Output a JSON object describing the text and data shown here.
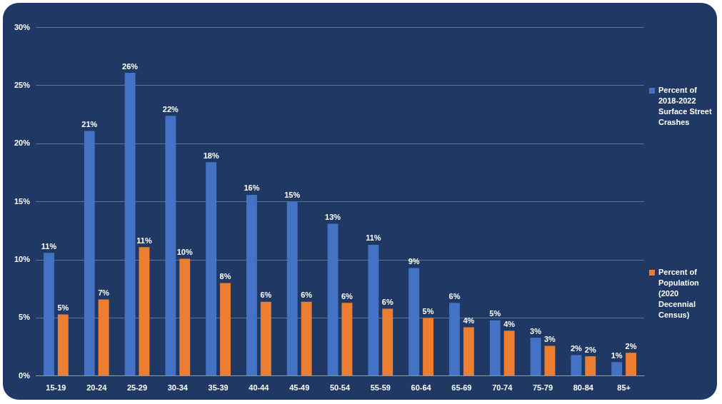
{
  "chart_data": {
    "type": "bar",
    "categories": [
      "15-19",
      "20-24",
      "25-29",
      "30-34",
      "35-39",
      "40-44",
      "45-49",
      "50-54",
      "55-59",
      "60-64",
      "65-69",
      "70-74",
      "75-79",
      "80-84",
      "85+"
    ],
    "series": [
      {
        "name": "Percent of 2018-2022 Surface Street Crashes",
        "color": "#4472c4",
        "values": [
          10.6,
          21.1,
          26.1,
          22.4,
          18.4,
          15.6,
          15.0,
          13.1,
          11.3,
          9.3,
          6.3,
          4.8,
          3.3,
          1.8,
          1.2
        ],
        "value_labels": [
          "11%",
          "21%",
          "26%",
          "22%",
          "18%",
          "16%",
          "15%",
          "13%",
          "11%",
          "9%",
          "6%",
          "5%",
          "3%",
          "2%",
          "1%"
        ]
      },
      {
        "name": "Percent of Population (2020 Decennial Census)",
        "color": "#ed7d31",
        "values": [
          5.3,
          6.6,
          11.1,
          10.1,
          8.0,
          6.4,
          6.4,
          6.3,
          5.8,
          5.0,
          4.2,
          3.9,
          2.6,
          1.7,
          2.0
        ],
        "value_labels": [
          "5%",
          "7%",
          "11%",
          "10%",
          "8%",
          "6%",
          "6%",
          "6%",
          "6%",
          "5%",
          "4%",
          "4%",
          "3%",
          "2%",
          "2%"
        ]
      }
    ],
    "ylim": [
      0,
      30
    ],
    "yticks": [
      {
        "value": 0,
        "label": "0%"
      },
      {
        "value": 5,
        "label": "5%"
      },
      {
        "value": 10,
        "label": "10%"
      },
      {
        "value": 15,
        "label": "15%"
      },
      {
        "value": 20,
        "label": "20%"
      },
      {
        "value": 25,
        "label": "25%"
      },
      {
        "value": 30,
        "label": "30%"
      }
    ],
    "grid": "y",
    "legend": "right"
  }
}
